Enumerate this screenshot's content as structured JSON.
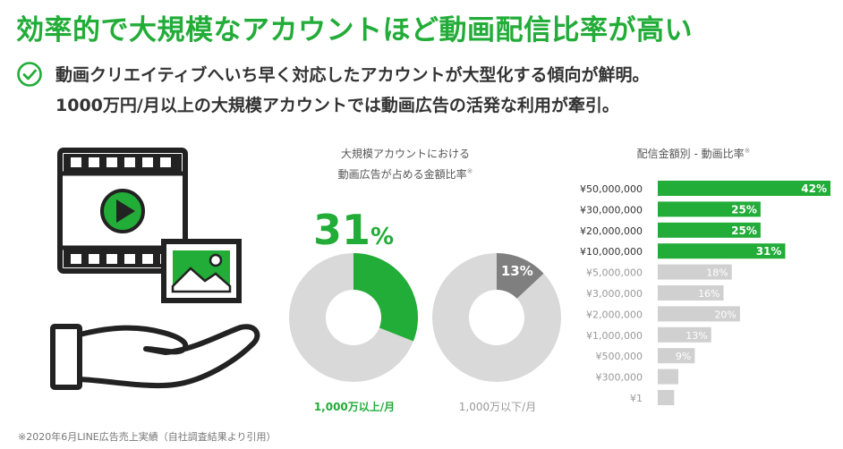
{
  "heading": "効率的で大規模なアカウントほど動画配信比率が高い",
  "subtitle_line1": "動画クリエイティブへいち早く対応したアカウントが大型化する傾向が鮮明。",
  "subtitle_line2": "1000万円/月以上の大規模アカウントでは動画広告の活発な利用が牽引。",
  "donut_section": {
    "caption_line1": "大規模アカウントにおける",
    "caption_line2": "動画広告が占める金額比率",
    "note_mark": "※",
    "big_value": "31",
    "big_unit": "%"
  },
  "bar_section": {
    "title": "配信金額別 - 動画比率",
    "note_mark": "※"
  },
  "colors": {
    "accent": "#22ac38",
    "secondary": "#7f7f7f",
    "track": "#d9d9d9",
    "bar_muted": "#d0d0d0"
  },
  "icons": [
    "check-circle-icon",
    "video-film-icon",
    "play-icon",
    "image-icon",
    "hand-icon"
  ],
  "footnote": "※2020年6月LINE広告売上実績（自社調査結果より引用）",
  "chart_data": [
    {
      "type": "pie",
      "variant": "donut",
      "slices": [
        {
          "label": "1,000万以上/月",
          "value": 31
        }
      ],
      "remainder": 69,
      "value_label": "31%",
      "category_label": "1,000万以上/月"
    },
    {
      "type": "pie",
      "variant": "donut",
      "slices": [
        {
          "label": "1,000万以下/月",
          "value": 13
        }
      ],
      "remainder": 87,
      "value_label": "13%",
      "category_label": "1,000万以下/月"
    },
    {
      "type": "bar",
      "orientation": "horizontal",
      "title": "配信金額別 - 動画比率",
      "categories": [
        "¥50,000,000",
        "¥30,000,000",
        "¥20,000,000",
        "¥10,000,000",
        "¥5,000,000",
        "¥3,000,000",
        "¥2,000,000",
        "¥1,000,000",
        "¥500,000",
        "¥300,000",
        "¥1"
      ],
      "values": [
        42,
        25,
        25,
        31,
        18,
        16,
        20,
        13,
        9,
        5,
        4
      ],
      "value_labels": [
        "42%",
        "25%",
        "25%",
        "31%",
        "18%",
        "16%",
        "20%",
        "13%",
        "9%",
        "",
        ""
      ],
      "highlighted": [
        true,
        true,
        true,
        true,
        false,
        false,
        false,
        false,
        false,
        false,
        false
      ],
      "xlim": [
        0,
        42
      ]
    }
  ]
}
